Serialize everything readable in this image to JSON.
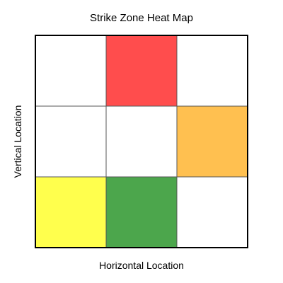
{
  "chart_data": {
    "type": "heatmap",
    "title": "Strike Zone Heat Map",
    "xlabel": "Horizontal Location",
    "ylabel": "Vertical Location",
    "rows": 3,
    "cols": 3,
    "cells": [
      [
        "#FFFFFF",
        "#FF4D4D",
        "#FFFFFF"
      ],
      [
        "#FFFFFF",
        "#FFFFFF",
        "#FFC050"
      ],
      [
        "#FFFF4D",
        "#4CA64C",
        "#FFFFFF"
      ]
    ],
    "grid": true
  }
}
